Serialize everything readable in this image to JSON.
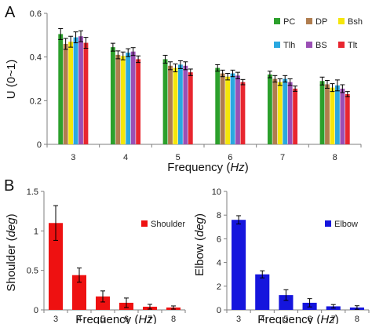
{
  "chart_data": [
    {
      "panel_label": "A",
      "type": "bar",
      "categories": [
        "3",
        "4",
        "5",
        "6",
        "7",
        "8"
      ],
      "xlabel": "Frequency",
      "xlabel_unit": "Hz",
      "ylabel": "U (0~1)",
      "ylim": [
        0,
        0.6
      ],
      "yticks": [
        "0",
        "0.2",
        "0.4",
        "0.6"
      ],
      "legend_position": "top-right",
      "series": [
        {
          "name": "PC",
          "color": "#2ca02c",
          "values": [
            0.505,
            0.445,
            0.39,
            0.35,
            0.32,
            0.29
          ],
          "errors": [
            0.025,
            0.018,
            0.018,
            0.015,
            0.015,
            0.018
          ]
        },
        {
          "name": "DP",
          "color": "#b07d4f",
          "values": [
            0.46,
            0.41,
            0.36,
            0.325,
            0.3,
            0.275
          ],
          "errors": [
            0.025,
            0.018,
            0.018,
            0.015,
            0.015,
            0.018
          ]
        },
        {
          "name": "Bsh",
          "color": "#f5e60a",
          "values": [
            0.47,
            0.405,
            0.35,
            0.31,
            0.285,
            0.26
          ],
          "errors": [
            0.025,
            0.018,
            0.018,
            0.015,
            0.015,
            0.018
          ]
        },
        {
          "name": "Tlh",
          "color": "#2aa8e0",
          "values": [
            0.49,
            0.42,
            0.365,
            0.325,
            0.3,
            0.27
          ],
          "errors": [
            0.025,
            0.018,
            0.018,
            0.015,
            0.015,
            0.025
          ]
        },
        {
          "name": "BS",
          "color": "#9b4fb5",
          "values": [
            0.495,
            0.425,
            0.36,
            0.315,
            0.285,
            0.255
          ],
          "errors": [
            0.025,
            0.018,
            0.018,
            0.015,
            0.015,
            0.018
          ]
        },
        {
          "name": "Tlt",
          "color": "#e8262f",
          "values": [
            0.465,
            0.39,
            0.33,
            0.285,
            0.255,
            0.23
          ],
          "errors": [
            0.025,
            0.015,
            0.015,
            0.012,
            0.012,
            0.012
          ]
        }
      ]
    },
    {
      "panel_label": "B",
      "type": "bar",
      "categories": [
        "3",
        "4",
        "5",
        "6",
        "7",
        "8"
      ],
      "xlabel": "Frequency",
      "xlabel_unit": "Hz",
      "ylabel": "Shoulder",
      "ylabel_unit": "deg",
      "ylim": [
        0,
        1.5
      ],
      "yticks": [
        "0",
        "0.5",
        "1",
        "1.5"
      ],
      "legend_position": "right",
      "series": [
        {
          "name": "Shoulder",
          "color": "#ee1111",
          "values": [
            1.1,
            0.44,
            0.17,
            0.09,
            0.04,
            0.03
          ],
          "errors": [
            0.22,
            0.09,
            0.07,
            0.06,
            0.03,
            0.02
          ]
        }
      ]
    },
    {
      "type": "bar",
      "categories": [
        "3",
        "4",
        "5",
        "6",
        "7",
        "8"
      ],
      "xlabel": "Frequency",
      "xlabel_unit": "Hz",
      "ylabel": "Elbow",
      "ylabel_unit": "deg",
      "ylim": [
        0,
        10
      ],
      "yticks": [
        "0",
        "2",
        "4",
        "6",
        "8",
        "10"
      ],
      "legend_position": "right",
      "series": [
        {
          "name": "Elbow",
          "color": "#1515dd",
          "values": [
            7.6,
            3.0,
            1.25,
            0.6,
            0.3,
            0.2
          ],
          "errors": [
            0.35,
            0.3,
            0.45,
            0.35,
            0.15,
            0.15
          ]
        }
      ]
    }
  ]
}
